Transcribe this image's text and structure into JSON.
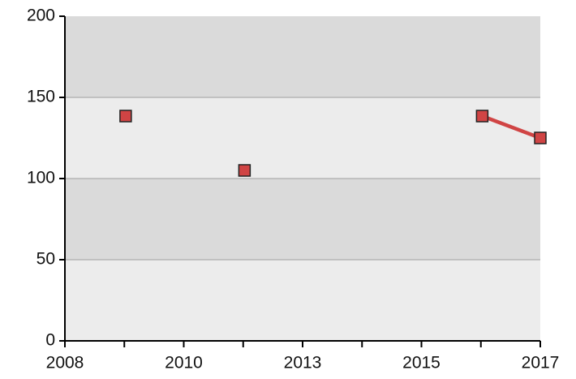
{
  "chart_data": {
    "type": "line",
    "x": [
      2009.15,
      null,
      2011.4,
      null,
      2015.9,
      2017
    ],
    "series": [
      {
        "color": "#d04444",
        "values": [
          138.5,
          null,
          105,
          null,
          138.5,
          125
        ]
      }
    ],
    "xlim": [
      2008,
      2017
    ],
    "xticks": [
      2008,
      {
        "value": 2010.25,
        "label": "2010"
      },
      {
        "value": 2012.5,
        "label": "2013"
      },
      {
        "value": 2014.75,
        "label": "2015"
      },
      2017
    ],
    "xminor_ticks": [
      2009.125,
      2011.375,
      2013.625,
      2015.875
    ],
    "ylim": [
      0,
      200
    ],
    "yticks": [
      0,
      50,
      100,
      150,
      200
    ],
    "grid": true,
    "band_colors": [
      "#ececec",
      "#dadada"
    ],
    "marker": "square"
  }
}
